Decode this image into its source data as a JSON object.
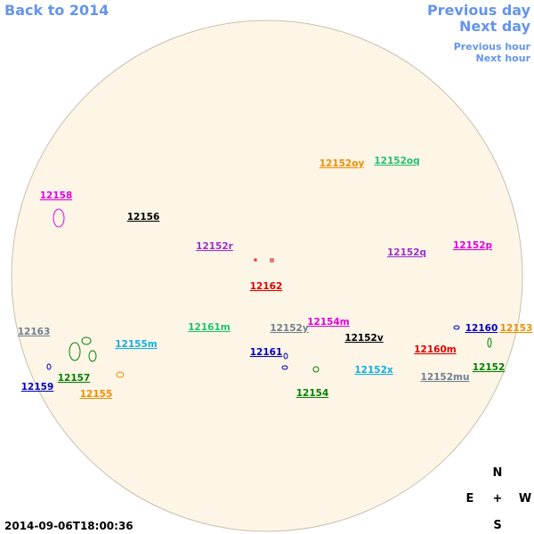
{
  "navigation": {
    "back": "Back to 2014",
    "previous_day": "Previous day",
    "next_day": "Next day",
    "previous_hour": "Previous hour",
    "next_hour": "Next hour"
  },
  "timestamp": "2014-09-06T18:00:36",
  "compass": {
    "north": "N",
    "east": "E",
    "center": "+",
    "west": "W",
    "south": "S"
  },
  "regions": [
    {
      "label": "12158",
      "color": "#e000e0"
    },
    {
      "label": "12156",
      "color": "#000000"
    },
    {
      "label": "12152r",
      "color": "#9932cc"
    },
    {
      "label": "12162",
      "color": "#e00000"
    },
    {
      "label": "12152oy",
      "color": "#f08c00"
    },
    {
      "label": "12152oq",
      "color": "#20c070"
    },
    {
      "label": "12152q",
      "color": "#9932cc"
    },
    {
      "label": "12152p",
      "color": "#e000e0"
    },
    {
      "label": "12163",
      "color": "#708090"
    },
    {
      "label": "12155m",
      "color": "#10b0e0"
    },
    {
      "label": "12161m",
      "color": "#20c070"
    },
    {
      "label": "12152y",
      "color": "#708090"
    },
    {
      "label": "12154m",
      "color": "#e000e0"
    },
    {
      "label": "12152v",
      "color": "#000000"
    },
    {
      "label": "12161",
      "color": "#0000c0"
    },
    {
      "label": "12160",
      "color": "#0000c0"
    },
    {
      "label": "12153",
      "color": "#f08c00"
    },
    {
      "label": "12160m",
      "color": "#e00000"
    },
    {
      "label": "12157",
      "color": "#008000"
    },
    {
      "label": "12159",
      "color": "#0000c0"
    },
    {
      "label": "12155",
      "color": "#f08c00"
    },
    {
      "label": "12152x",
      "color": "#10b0e0"
    },
    {
      "label": "12152mu",
      "color": "#708090"
    },
    {
      "label": "12152",
      "color": "#008000"
    },
    {
      "label": "12154",
      "color": "#008000"
    }
  ]
}
